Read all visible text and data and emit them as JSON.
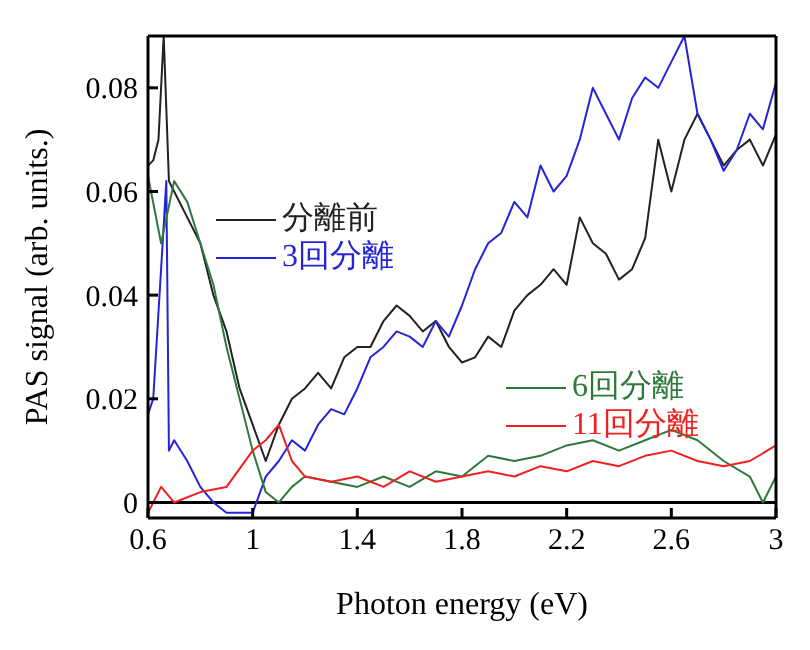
{
  "chart_data": {
    "type": "line",
    "xlabel": "Photon energy (eV)",
    "ylabel": "PAS signal (arb. units.)",
    "xlim": [
      0.6,
      3
    ],
    "xticks": [
      0.6,
      1,
      1.4,
      1.8,
      2.2,
      2.6,
      3
    ],
    "ylim": [
      -0.003,
      0.09
    ],
    "yticks": [
      0,
      0.02,
      0.04,
      0.06,
      0.08
    ],
    "legend": "left",
    "marker": "none",
    "line_style": "solid",
    "ref_lines": [
      {
        "axis": "y",
        "value": 0,
        "color": "#000000"
      }
    ],
    "series": [
      {
        "name": "分離前",
        "color": "#222222",
        "x": [
          0.6,
          0.62,
          0.64,
          0.66,
          0.68,
          0.7,
          0.75,
          0.8,
          0.85,
          0.9,
          0.95,
          1.0,
          1.05,
          1.1,
          1.15,
          1.2,
          1.25,
          1.3,
          1.35,
          1.4,
          1.45,
          1.5,
          1.55,
          1.6,
          1.65,
          1.7,
          1.75,
          1.8,
          1.85,
          1.9,
          1.95,
          2.0,
          2.05,
          2.1,
          2.15,
          2.2,
          2.25,
          2.3,
          2.35,
          2.4,
          2.45,
          2.5,
          2.55,
          2.6,
          2.65,
          2.7,
          2.75,
          2.8,
          2.85,
          2.9,
          2.95,
          3.0
        ],
        "values": [
          0.065,
          0.066,
          0.07,
          0.09,
          0.062,
          0.06,
          0.055,
          0.05,
          0.04,
          0.033,
          0.022,
          0.015,
          0.008,
          0.015,
          0.02,
          0.022,
          0.025,
          0.022,
          0.028,
          0.03,
          0.03,
          0.035,
          0.038,
          0.036,
          0.033,
          0.035,
          0.03,
          0.027,
          0.028,
          0.032,
          0.03,
          0.037,
          0.04,
          0.042,
          0.045,
          0.042,
          0.055,
          0.05,
          0.048,
          0.043,
          0.045,
          0.051,
          0.07,
          0.06,
          0.07,
          0.075,
          0.07,
          0.065,
          0.068,
          0.07,
          0.065,
          0.071
        ]
      },
      {
        "name": "3回分離",
        "color": "#2424d8",
        "x": [
          0.6,
          0.62,
          0.65,
          0.67,
          0.68,
          0.7,
          0.75,
          0.8,
          0.85,
          0.9,
          1.0,
          1.05,
          1.1,
          1.15,
          1.2,
          1.25,
          1.3,
          1.35,
          1.4,
          1.45,
          1.5,
          1.55,
          1.6,
          1.65,
          1.7,
          1.75,
          1.8,
          1.85,
          1.9,
          1.95,
          2.0,
          2.05,
          2.1,
          2.15,
          2.2,
          2.25,
          2.3,
          2.35,
          2.4,
          2.45,
          2.5,
          2.55,
          2.6,
          2.65,
          2.7,
          2.75,
          2.8,
          2.85,
          2.9,
          2.95,
          3.0
        ],
        "values": [
          0.017,
          0.02,
          0.045,
          0.062,
          0.01,
          0.012,
          0.008,
          0.003,
          0,
          -0.002,
          -0.002,
          0.005,
          0.008,
          0.012,
          0.01,
          0.015,
          0.018,
          0.017,
          0.022,
          0.028,
          0.03,
          0.033,
          0.032,
          0.03,
          0.035,
          0.032,
          0.038,
          0.045,
          0.05,
          0.052,
          0.058,
          0.055,
          0.065,
          0.06,
          0.063,
          0.07,
          0.08,
          0.075,
          0.07,
          0.078,
          0.082,
          0.08,
          0.085,
          0.09,
          0.075,
          0.07,
          0.064,
          0.068,
          0.075,
          0.072,
          0.081
        ]
      },
      {
        "name": "6回分離",
        "color": "#2e7a3a",
        "x": [
          0.6,
          0.65,
          0.7,
          0.75,
          0.8,
          0.85,
          0.9,
          0.95,
          1.0,
          1.05,
          1.1,
          1.15,
          1.2,
          1.3,
          1.4,
          1.5,
          1.6,
          1.7,
          1.8,
          1.9,
          2.0,
          2.1,
          2.2,
          2.3,
          2.4,
          2.5,
          2.6,
          2.7,
          2.8,
          2.9,
          2.95,
          3.0
        ],
        "values": [
          0.063,
          0.05,
          0.062,
          0.058,
          0.05,
          0.042,
          0.03,
          0.02,
          0.01,
          0.002,
          0,
          0.003,
          0.005,
          0.004,
          0.003,
          0.005,
          0.003,
          0.006,
          0.005,
          0.009,
          0.008,
          0.009,
          0.011,
          0.012,
          0.01,
          0.012,
          0.014,
          0.012,
          0.008,
          0.005,
          0,
          0.005
        ]
      },
      {
        "name": "11回分離",
        "color": "#f02020",
        "x": [
          0.6,
          0.65,
          0.7,
          0.8,
          0.9,
          1.0,
          1.05,
          1.1,
          1.15,
          1.2,
          1.3,
          1.4,
          1.5,
          1.6,
          1.7,
          1.8,
          1.9,
          2.0,
          2.1,
          2.2,
          2.3,
          2.4,
          2.5,
          2.6,
          2.7,
          2.8,
          2.9,
          3.0
        ],
        "values": [
          -0.002,
          0.003,
          0,
          0.002,
          0.003,
          0.01,
          0.012,
          0.015,
          0.008,
          0.005,
          0.004,
          0.005,
          0.003,
          0.006,
          0.004,
          0.005,
          0.006,
          0.005,
          0.007,
          0.006,
          0.008,
          0.007,
          0.009,
          0.01,
          0.008,
          0.007,
          0.008,
          0.011
        ]
      }
    ]
  }
}
